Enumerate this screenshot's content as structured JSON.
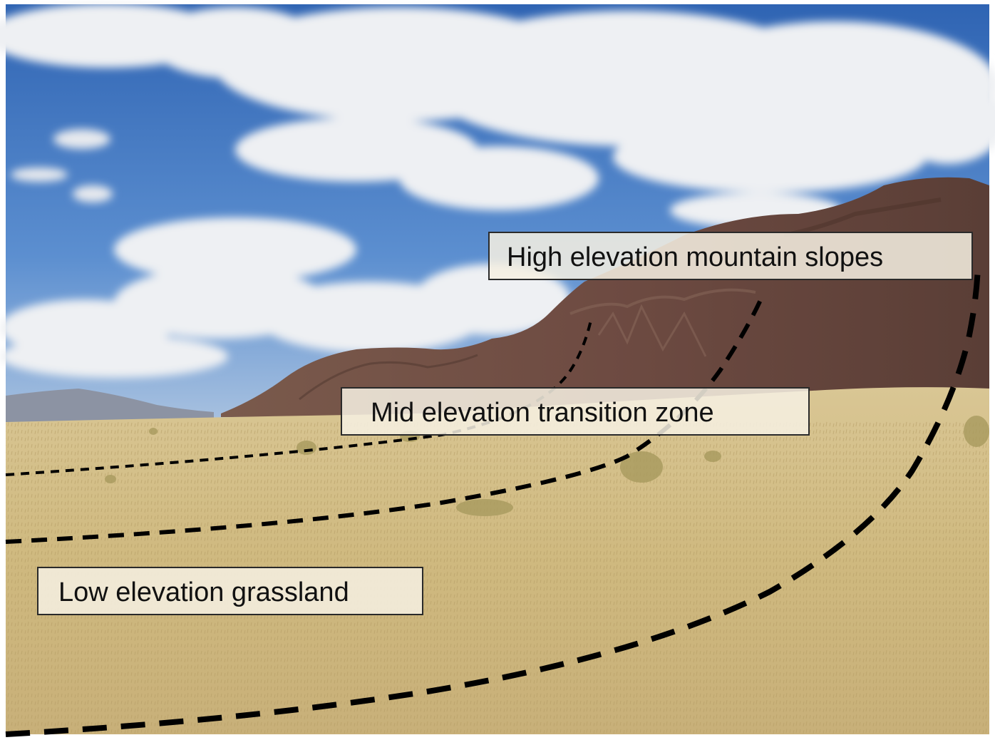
{
  "labels": {
    "high": "High elevation  mountain slopes",
    "mid": "Mid elevation  transition zone",
    "low": "Low elevation  grassland"
  },
  "colors": {
    "sky": "#3f78c4",
    "cloud": "#f1f2f4",
    "mountain": "#6b4a40",
    "grass": "#cdb77c",
    "boundary_line": "#000000"
  }
}
